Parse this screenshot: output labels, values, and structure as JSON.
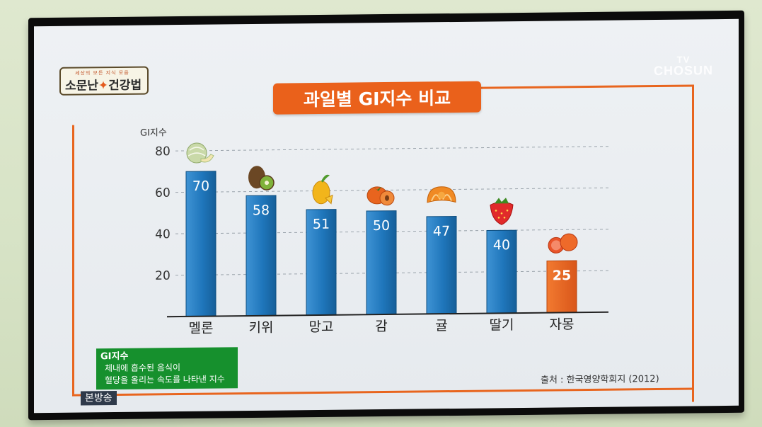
{
  "show_logo": {
    "tagline": "세상의 모든 지식 모음",
    "name_left": "소문난",
    "name_right": "건강법"
  },
  "network": {
    "line1": "TV",
    "line2": "CHOSUN"
  },
  "title": "과일별 GI지수 비교",
  "legend": {
    "title": "GI지수",
    "line1": "체내에 흡수된 음식이",
    "line2": "혈당을 올리는 속도를 나타낸 지수"
  },
  "source": "출처 : 한국영양학회지 (2012)",
  "broadcast_label": "본방송",
  "colors": {
    "accent": "#ea611b",
    "bar_blue": "#1e74b8",
    "bar_orange": "#e8651e",
    "legend_green": "#16902d"
  },
  "chart_data": {
    "type": "bar",
    "ylabel": "GI지수",
    "categories": [
      "멜론",
      "키위",
      "망고",
      "감",
      "귤",
      "딸기",
      "자몽"
    ],
    "values": [
      70,
      58,
      51,
      50,
      47,
      40,
      25
    ],
    "highlight_index": 6,
    "yticks": [
      20,
      40,
      60,
      80
    ],
    "ylim": [
      0,
      80
    ],
    "grid": true,
    "icons": [
      "melon-icon",
      "kiwi-icon",
      "mango-icon",
      "persimmon-icon",
      "tangerine-icon",
      "strawberry-icon",
      "grapefruit-icon"
    ]
  }
}
